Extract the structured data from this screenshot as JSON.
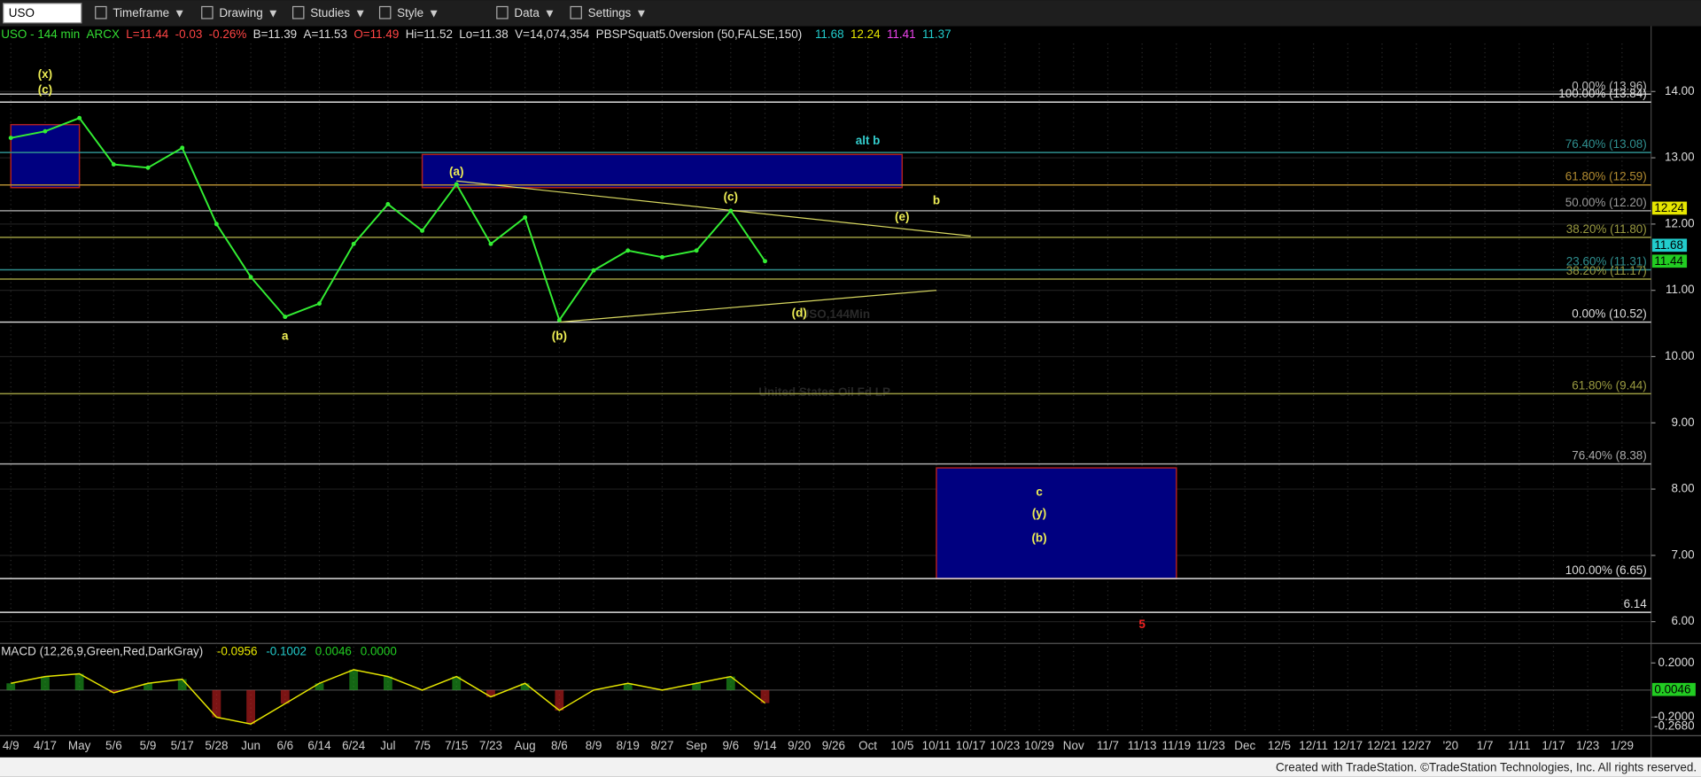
{
  "toolbar": {
    "symbol": "USO",
    "items": [
      "Timeframe",
      "Drawing",
      "Studies",
      "Style",
      "Data",
      "Settings"
    ]
  },
  "header": [
    {
      "text": "USO - 144 min",
      "color": "#33dd33"
    },
    {
      "text": "ARCX",
      "color": "#33dd33"
    },
    {
      "text": "L=11.44",
      "color": "#ff4444"
    },
    {
      "text": "-0.03",
      "color": "#ff4444"
    },
    {
      "text": "-0.26%",
      "color": "#ff4444"
    },
    {
      "text": "B=11.39",
      "color": "#dddddd"
    },
    {
      "text": "A=11.53",
      "color": "#dddddd"
    },
    {
      "text": "O=11.49",
      "color": "#ff4444"
    },
    {
      "text": "Hi=11.52",
      "color": "#dddddd"
    },
    {
      "text": "Lo=11.38",
      "color": "#dddddd"
    },
    {
      "text": "V=14,074,354",
      "color": "#dddddd"
    },
    {
      "text": "PBSPSquat5.0version (50,FALSE,150)",
      "color": "#dddddd"
    },
    {
      "text": "11.68",
      "color": "#22cccc"
    },
    {
      "text": "12.24",
      "color": "#e6e600"
    },
    {
      "text": "11.41",
      "color": "#ee44ee"
    },
    {
      "text": "11.37",
      "color": "#22cccc"
    }
  ],
  "watermark": {
    "symbol": "USO,144Min",
    "name": "United States Oil Fd LP"
  },
  "chart_data": {
    "type": "line",
    "categories": [
      "4/9",
      "4/17",
      "May",
      "5/6",
      "5/9",
      "5/17",
      "5/28",
      "Jun",
      "6/6",
      "6/14",
      "6/24",
      "Jul",
      "7/5",
      "7/15",
      "7/23",
      "Aug",
      "8/6",
      "8/9",
      "8/19",
      "8/27",
      "Sep",
      "9/6",
      "9/14",
      "9/20",
      "9/26",
      "Oct",
      "10/5",
      "10/11",
      "10/17",
      "10/23",
      "10/29",
      "Nov",
      "11/7",
      "11/13",
      "11/19",
      "11/23",
      "Dec",
      "12/5",
      "12/11",
      "12/17",
      "12/21",
      "12/27",
      "'20",
      "1/7",
      "1/11",
      "1/17",
      "1/23",
      "1/29"
    ],
    "series": [
      {
        "name": "USO",
        "color": "#33ee33",
        "values": [
          13.3,
          13.4,
          13.6,
          12.9,
          12.85,
          13.15,
          12.0,
          11.2,
          10.6,
          10.8,
          11.7,
          12.3,
          11.9,
          12.6,
          11.7,
          12.1,
          10.55,
          11.3,
          11.6,
          11.5,
          11.6,
          12.2,
          11.44,
          null,
          null,
          null,
          null,
          null,
          null,
          null,
          null,
          null,
          null,
          null,
          null,
          null,
          null,
          null,
          null,
          null,
          null,
          null,
          null,
          null,
          null,
          null,
          null,
          null
        ]
      }
    ],
    "ylim": [
      5.72,
      14.97
    ],
    "yticks": [
      {
        "value": 6,
        "label": "6.00"
      },
      {
        "value": 7,
        "label": "7.00"
      },
      {
        "value": 8,
        "label": "8.00"
      },
      {
        "value": 9,
        "label": "9.00"
      },
      {
        "value": 10,
        "label": "10.00"
      },
      {
        "value": 11,
        "label": "11.00"
      },
      {
        "value": 12,
        "label": "12.00"
      },
      {
        "value": 13,
        "label": "13.00"
      },
      {
        "value": 14,
        "label": "14.00"
      }
    ],
    "grid": true,
    "levels": [
      {
        "value": 13.96,
        "label": "0.00% (13.96)",
        "color": "#bbbbbb"
      },
      {
        "value": 13.84,
        "label": "100.00% (13.84)",
        "color": "#dddddd"
      },
      {
        "value": 13.08,
        "label": "76.40% (13.08)",
        "color": "#2f8f8f"
      },
      {
        "value": 12.59,
        "label": "61.80% (12.59)",
        "color": "#b08a30"
      },
      {
        "value": 12.2,
        "label": "50.00% (12.20)",
        "color": "#999999"
      },
      {
        "value": 11.8,
        "label": "38.20% (11.80)",
        "color": "#9a9a40"
      },
      {
        "value": 11.31,
        "label": "23.60% (11.31)",
        "color": "#2f8f8f"
      },
      {
        "value": 11.17,
        "label": "38.20% (11.17)",
        "color": "#9a9a40"
      },
      {
        "value": 10.52,
        "label": "0.00% (10.52)",
        "color": "#dddddd"
      },
      {
        "value": 9.44,
        "label": "61.80% (9.44)",
        "color": "#9a9a40"
      },
      {
        "value": 8.38,
        "label": "76.40% (8.38)",
        "color": "#aaaaaa"
      },
      {
        "value": 6.65,
        "label": "100.00% (6.65)",
        "color": "#dddddd"
      },
      {
        "value": 6.14,
        "label": "6.14",
        "color": "#dddddd"
      }
    ],
    "zones": [
      {
        "from": "4/9",
        "to": "May",
        "low": 12.55,
        "high": 13.5
      },
      {
        "from": "7/5",
        "to": "10/5",
        "low": 12.55,
        "high": 13.05
      },
      {
        "from": "10/11",
        "to": "11/19",
        "low": 6.65,
        "high": 8.32
      }
    ],
    "trendlines": [
      {
        "from": "7/15",
        "to": "10/17",
        "start": 12.65,
        "end": 11.82
      },
      {
        "from": "8/6",
        "to": "10/11",
        "start": 10.52,
        "end": 11.0
      }
    ],
    "annotations": [
      {
        "text": "(x)",
        "at": "4/17",
        "price": 14.25,
        "color": "#eeee55",
        "size": 15
      },
      {
        "text": "(c)",
        "at": "4/17",
        "price": 14.02,
        "color": "#eeee55",
        "size": 10
      },
      {
        "text": "a",
        "at": "6/6",
        "price": 10.3,
        "color": "#eeee55",
        "size": 13
      },
      {
        "text": "(a)",
        "at": "7/15",
        "price": 12.78,
        "color": "#eeee55",
        "size": 9
      },
      {
        "text": "(b)",
        "at": "8/6",
        "price": 10.3,
        "color": "#eeee55",
        "size": 9
      },
      {
        "text": "(c)",
        "at": "9/6",
        "price": 12.4,
        "color": "#eeee55",
        "size": 9
      },
      {
        "text": "(d)",
        "at": "9/20",
        "price": 10.65,
        "color": "#eeee55",
        "size": 9
      },
      {
        "text": "(e)",
        "at": "10/5",
        "price": 12.1,
        "color": "#eeee55",
        "size": 9
      },
      {
        "text": "b",
        "at": "10/11",
        "price": 12.35,
        "color": "#eeee55",
        "size": 14
      },
      {
        "text": "alt b",
        "at": "Oct",
        "price": 13.25,
        "color": "#33cccc",
        "size": 14
      },
      {
        "text": "c",
        "at": "10/29",
        "price": 7.95,
        "color": "#eeee55",
        "size": 14
      },
      {
        "text": "(y)",
        "at": "10/29",
        "price": 7.63,
        "color": "#eeee55",
        "size": 14
      },
      {
        "text": "(b)",
        "at": "10/29",
        "price": 7.25,
        "color": "#eeee55",
        "size": 19
      },
      {
        "text": "5",
        "at": "11/13",
        "price": 5.95,
        "color": "#ee2222",
        "size": 19
      }
    ],
    "price_markers": [
      {
        "value": 12.24,
        "color": "#e6e600"
      },
      {
        "value": 11.68,
        "color": "#22cccc"
      },
      {
        "value": 11.44,
        "color": "#22cc22"
      }
    ],
    "macd": {
      "title": "MACD (12,26,9,Green,Red,DarkGray)",
      "readings": [
        {
          "text": "-0.0956",
          "color": "#e6e600"
        },
        {
          "text": "-0.1002",
          "color": "#22cccc"
        },
        {
          "text": "0.0046",
          "color": "#22cc22"
        },
        {
          "text": "0.0000",
          "color": "#22cc22"
        }
      ],
      "values": [
        0.05,
        0.1,
        0.12,
        -0.02,
        0.05,
        0.08,
        -0.2,
        -0.25,
        -0.1,
        0.05,
        0.15,
        0.1,
        0.0,
        0.1,
        -0.05,
        0.05,
        -0.15,
        0.0,
        0.05,
        0.0,
        0.05,
        0.1,
        -0.0956,
        null,
        null,
        null,
        null,
        null,
        null,
        null,
        null,
        null,
        null,
        null,
        null,
        null,
        null,
        null,
        null,
        null,
        null,
        null,
        null,
        null,
        null,
        null,
        null,
        null
      ],
      "color": "#e6e600",
      "ylim": [
        -0.312,
        0.32
      ],
      "yticks": [
        {
          "value": 0.2,
          "label": "0.2000"
        },
        {
          "value": -0.2,
          "label": "-0.2000"
        }
      ],
      "markers": [
        {
          "value": 0.0046,
          "color": "#22cc22"
        },
        {
          "value": -0.268,
          "label": "-0.2680"
        }
      ]
    }
  },
  "footer": "Created with TradeStation. ©TradeStation Technologies, Inc. All rights reserved."
}
